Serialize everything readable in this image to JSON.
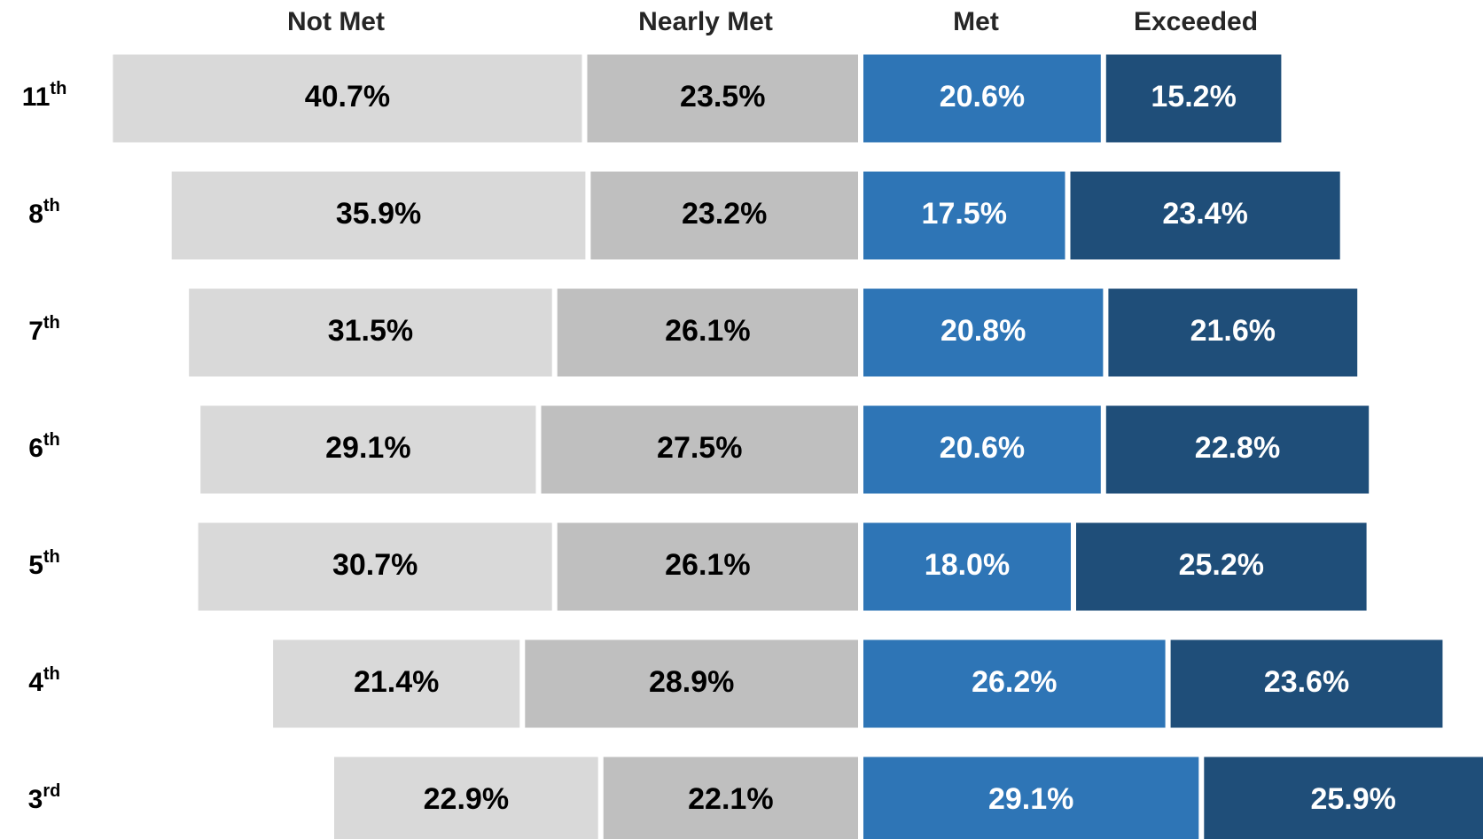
{
  "chart_data": {
    "type": "diverging_bar",
    "categories": [
      "11th",
      "8th",
      "7th",
      "6th",
      "5th",
      "4th",
      "3rd"
    ],
    "series": [
      {
        "name": "Not Met",
        "color": "#d9d9d9",
        "label_color": "#000000",
        "values": [
          40.7,
          35.9,
          31.5,
          29.1,
          30.7,
          21.4,
          22.9
        ],
        "value_labels": [
          "40.7%",
          "35.9%",
          "31.5%",
          "29.1%",
          "30.7%",
          "21.4%",
          "22.9%"
        ]
      },
      {
        "name": "Nearly Met",
        "color": "#bfbfbf",
        "label_color": "#000000",
        "values": [
          23.5,
          23.2,
          26.1,
          27.5,
          26.1,
          28.9,
          22.1
        ],
        "value_labels": [
          "23.5%",
          "23.2%",
          "26.1%",
          "27.5%",
          "26.1%",
          "28.9%",
          "22.1%"
        ]
      },
      {
        "name": "Met",
        "color": "#2e75b6",
        "label_color": "#ffffff",
        "values": [
          20.6,
          17.5,
          20.8,
          20.6,
          18.0,
          26.2,
          29.1
        ],
        "value_labels": [
          "20.6%",
          "17.5%",
          "20.8%",
          "20.6%",
          "18.0%",
          "26.2%",
          "29.1%"
        ]
      },
      {
        "name": "Exceeded",
        "color": "#1f4e79",
        "label_color": "#ffffff",
        "values": [
          15.2,
          23.4,
          21.6,
          22.8,
          25.2,
          23.6,
          25.9
        ],
        "value_labels": [
          "15.2%",
          "23.4%",
          "21.6%",
          "22.8%",
          "25.2%",
          "23.6%",
          "25.9%"
        ]
      }
    ]
  }
}
